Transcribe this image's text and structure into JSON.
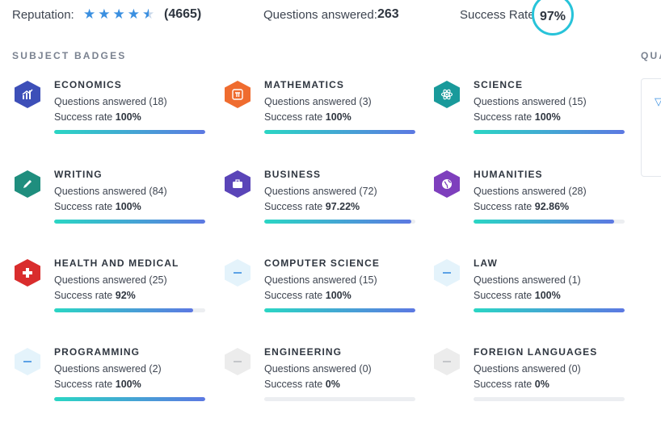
{
  "header": {
    "reputation_label": "Reputation:",
    "reputation_stars": 4.5,
    "reputation_count": "(4665)",
    "questions_label": "Questions answered:",
    "questions_value": "263",
    "success_label": "Success Rate:",
    "success_value": "97%"
  },
  "section_title": "SUBJECT BADGES",
  "side_title": "QUA",
  "badges": [
    {
      "name": "ECONOMICS",
      "questions": "Questions answered (18)",
      "rate_label": "Success rate",
      "rate": "100%",
      "rate_fraction": 1.0,
      "icon": "chart-icon",
      "color": "#3d4fb8"
    },
    {
      "name": "MATHEMATICS",
      "questions": "Questions answered (3)",
      "rate_label": "Success rate",
      "rate": "100%",
      "rate_fraction": 1.0,
      "icon": "pi-icon",
      "color": "#ef6c2f"
    },
    {
      "name": "SCIENCE",
      "questions": "Questions answered (15)",
      "rate_label": "Success rate",
      "rate": "100%",
      "rate_fraction": 1.0,
      "icon": "atom-icon",
      "color": "#199a9b"
    },
    {
      "name": "WRITING",
      "questions": "Questions answered (84)",
      "rate_label": "Success rate",
      "rate": "100%",
      "rate_fraction": 1.0,
      "icon": "pencil-icon",
      "color": "#1f8e7e"
    },
    {
      "name": "BUSINESS",
      "questions": "Questions answered (72)",
      "rate_label": "Success rate",
      "rate": "97.22%",
      "rate_fraction": 0.9722,
      "icon": "briefcase-icon",
      "color": "#5a45b8"
    },
    {
      "name": "HUMANITIES",
      "questions": "Questions answered (28)",
      "rate_label": "Success rate",
      "rate": "92.86%",
      "rate_fraction": 0.9286,
      "icon": "globe-icon",
      "color": "#7e3fbd"
    },
    {
      "name": "HEALTH AND MEDICAL",
      "questions": "Questions answered (25)",
      "rate_label": "Success rate",
      "rate": "92%",
      "rate_fraction": 0.92,
      "icon": "medical-cross-icon",
      "color": "#d92d2d"
    },
    {
      "name": "COMPUTER SCIENCE",
      "questions": "Questions answered (15)",
      "rate_label": "Success rate",
      "rate": "100%",
      "rate_fraction": 1.0,
      "icon": "minus-icon",
      "color": "#e4f3fb"
    },
    {
      "name": "LAW",
      "questions": "Questions answered (1)",
      "rate_label": "Success rate",
      "rate": "100%",
      "rate_fraction": 1.0,
      "icon": "minus-icon",
      "color": "#e4f3fb"
    },
    {
      "name": "PROGRAMMING",
      "questions": "Questions answered (2)",
      "rate_label": "Success rate",
      "rate": "100%",
      "rate_fraction": 1.0,
      "icon": "minus-icon",
      "color": "#e4f3fb"
    },
    {
      "name": "ENGINEERING",
      "questions": "Questions answered (0)",
      "rate_label": "Success rate",
      "rate": "0%",
      "rate_fraction": 0,
      "icon": "minus-icon",
      "color": "#ececec"
    },
    {
      "name": "FOREIGN LANGUAGES",
      "questions": "Questions answered (0)",
      "rate_label": "Success rate",
      "rate": "0%",
      "rate_fraction": 0,
      "icon": "minus-icon",
      "color": "#ececec"
    }
  ]
}
